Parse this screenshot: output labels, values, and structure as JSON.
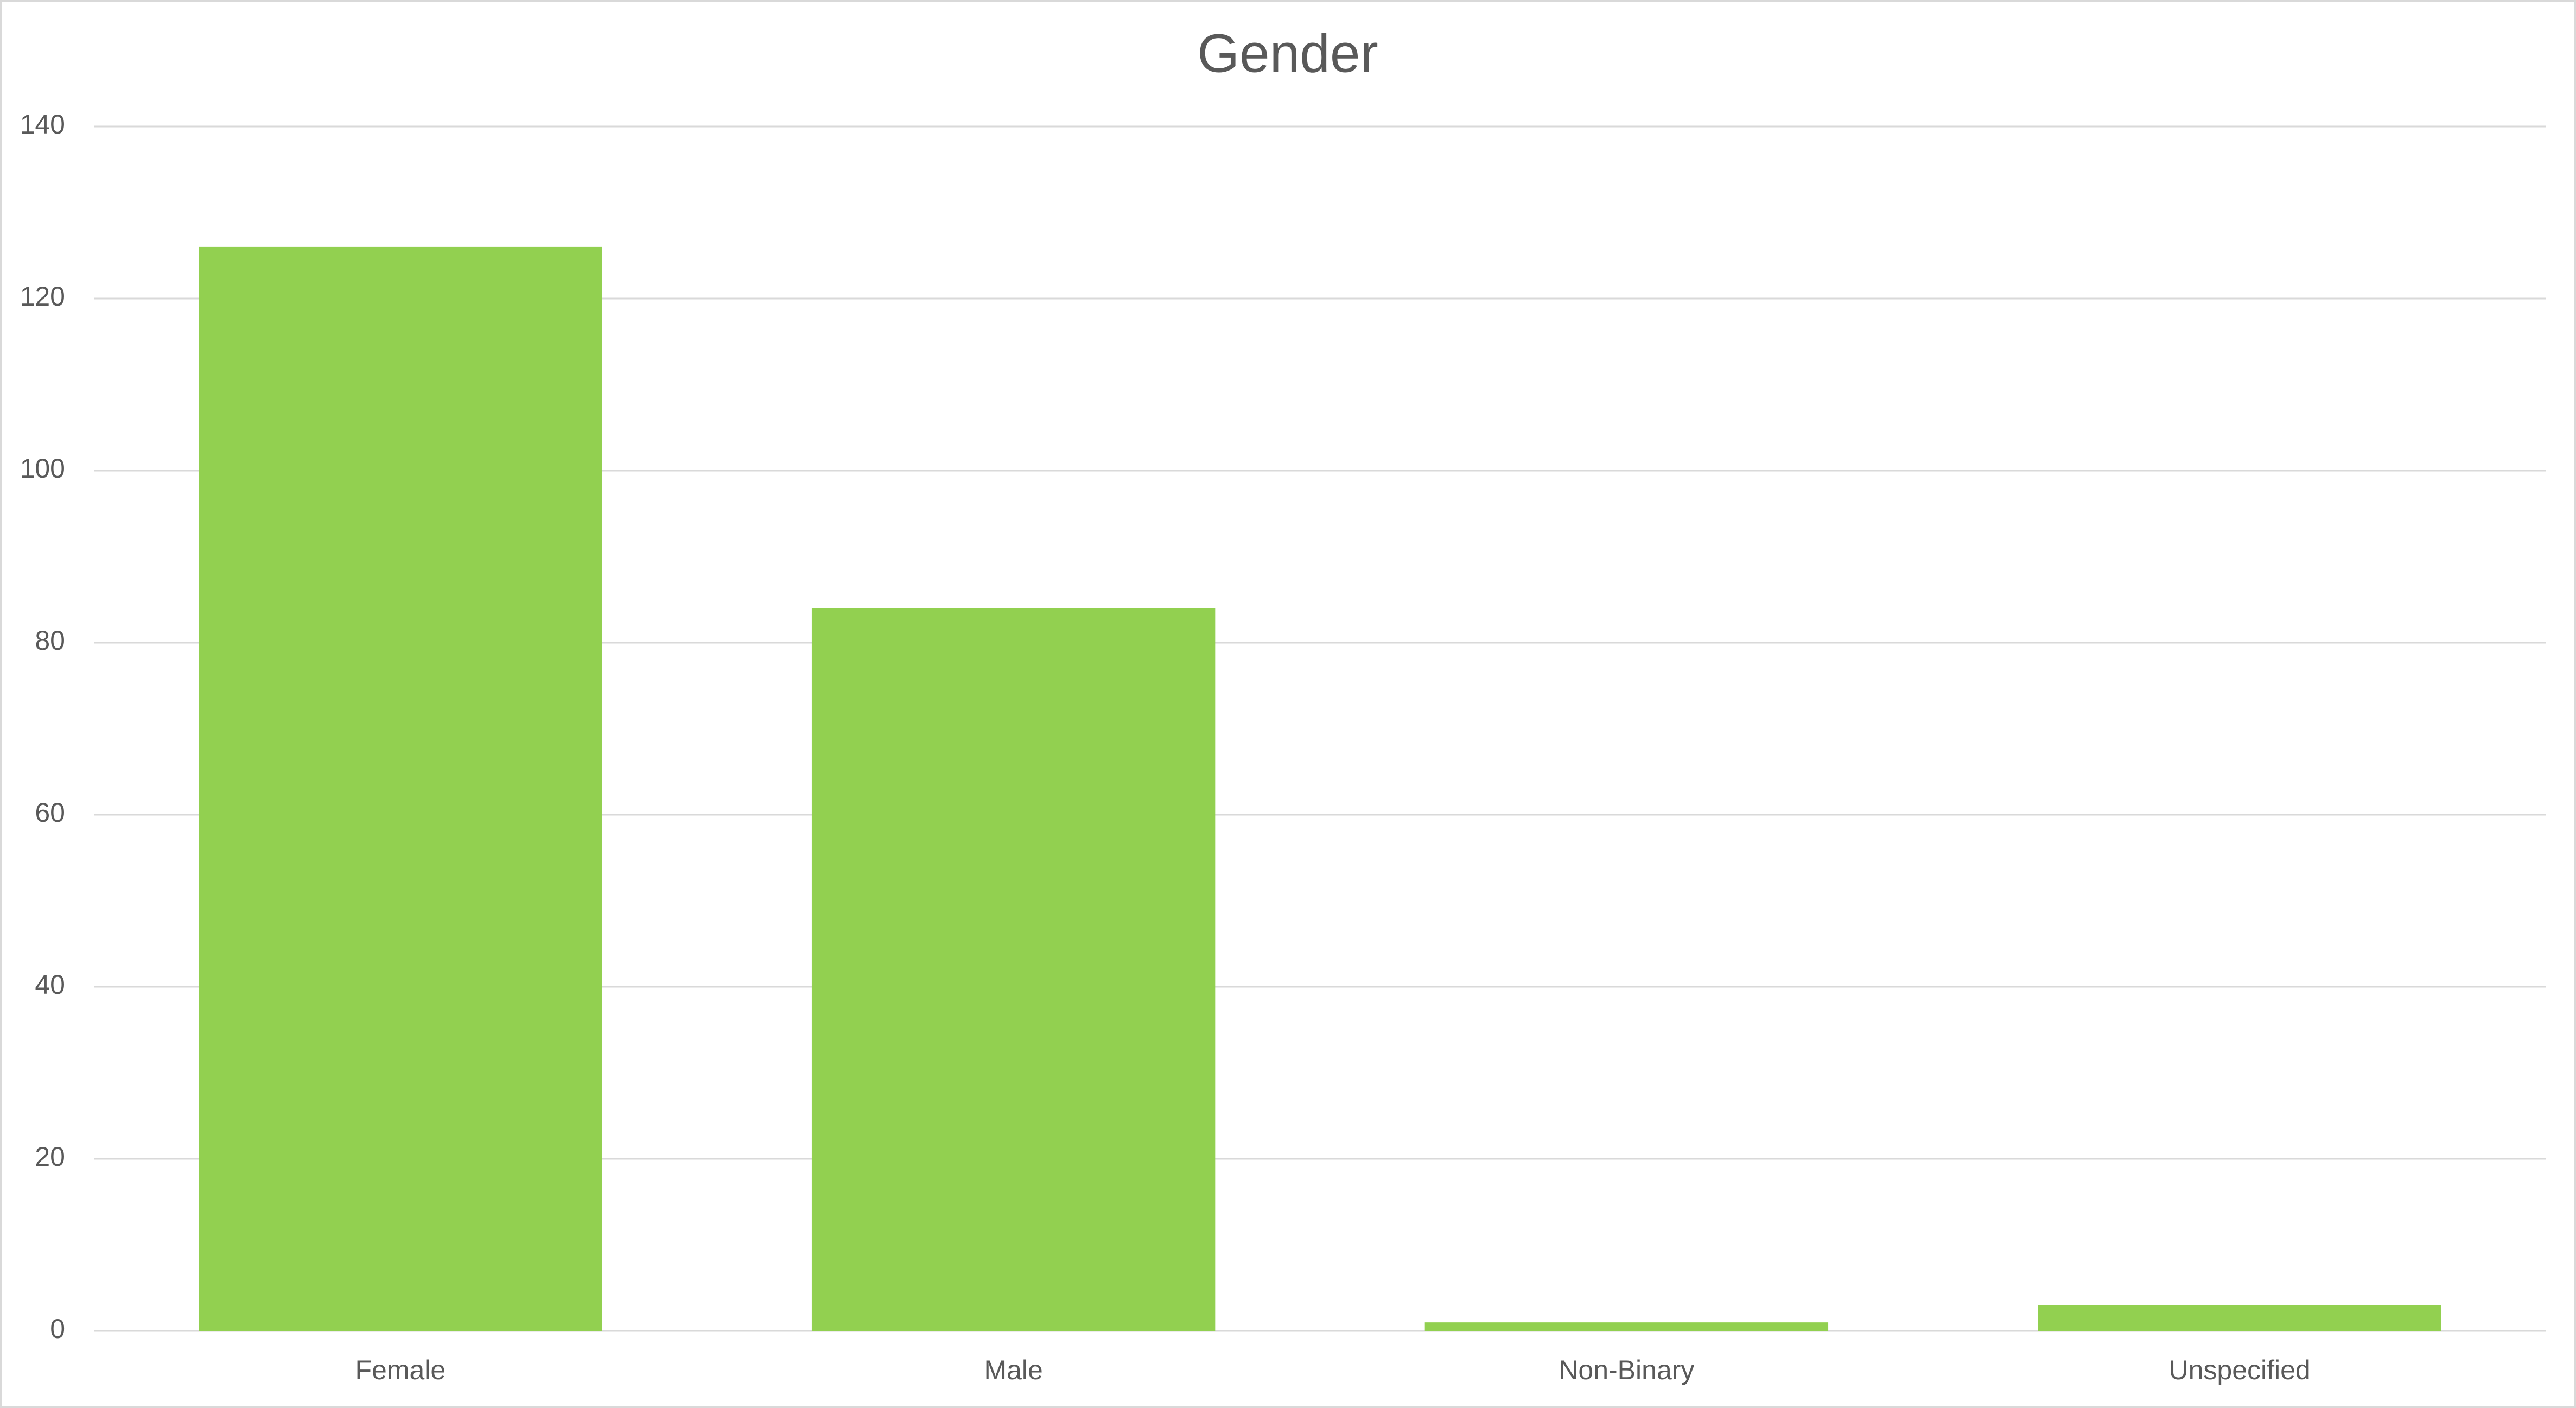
{
  "chart_data": {
    "type": "bar",
    "title": "Gender",
    "categories": [
      "Female",
      "Male",
      "Non-Binary",
      "Unspecified"
    ],
    "values": [
      126,
      84,
      1,
      3
    ],
    "color": "#92d050",
    "ylim": [
      0,
      140
    ],
    "yticks": [
      0,
      20,
      40,
      60,
      80,
      100,
      120,
      140
    ],
    "grid": true
  }
}
